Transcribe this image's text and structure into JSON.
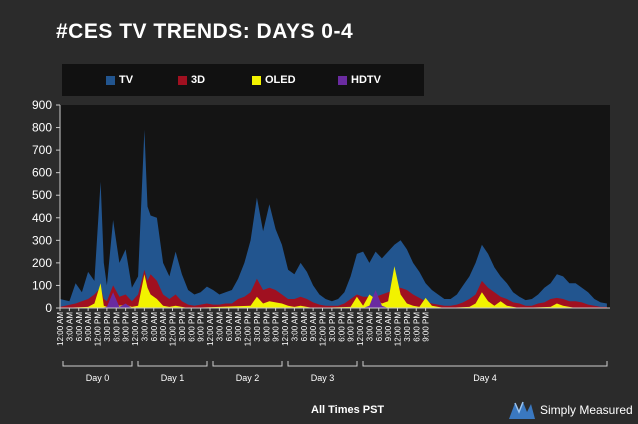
{
  "title": "#CES TV TRENDS: DAYS 0-4",
  "footer_note": "All Times PST",
  "brand": {
    "name": "Simply Measured",
    "icon": "simply-measured-logo"
  },
  "legend": [
    {
      "name": "TV",
      "color": "#22558f"
    },
    {
      "name": "3D",
      "color": "#a01020"
    },
    {
      "name": "OLED",
      "color": "#f2f200"
    },
    {
      "name": "HDTV",
      "color": "#6a2ba0"
    }
  ],
  "chart_data": {
    "type": "area",
    "title": "#CES TV TRENDS: DAYS 0-4",
    "ylim": [
      0,
      900
    ],
    "yticks": [
      0,
      100,
      200,
      300,
      400,
      500,
      600,
      700,
      800,
      900
    ],
    "grid": false,
    "legend_position": "top",
    "x_tick_labels": [
      "12:00 AM",
      "3:00 AM",
      "6:00 AM",
      "9:00 AM",
      "12:00 PM",
      "3:00 PM",
      "6:00 PM",
      "9:00 PM"
    ],
    "day_labels": [
      "Day 0",
      "Day 1",
      "Day 2",
      "Day 3",
      "Day 4"
    ],
    "x_unit": "hour (day 0, 12:00 AM = 0)",
    "series": [
      {
        "name": "TV",
        "color": "#22558f",
        "points": [
          [
            0,
            40
          ],
          [
            3,
            30
          ],
          [
            5,
            110
          ],
          [
            7,
            70
          ],
          [
            9,
            160
          ],
          [
            11,
            120
          ],
          [
            13,
            560
          ],
          [
            14,
            200
          ],
          [
            15,
            100
          ],
          [
            17,
            390
          ],
          [
            19,
            200
          ],
          [
            21,
            260
          ],
          [
            23,
            90
          ],
          [
            25,
            140
          ],
          [
            27,
            790
          ],
          [
            28,
            450
          ],
          [
            29,
            410
          ],
          [
            31,
            400
          ],
          [
            33,
            200
          ],
          [
            35,
            140
          ],
          [
            37,
            250
          ],
          [
            39,
            150
          ],
          [
            41,
            80
          ],
          [
            43,
            60
          ],
          [
            45,
            70
          ],
          [
            47,
            95
          ],
          [
            49,
            80
          ],
          [
            51,
            60
          ],
          [
            53,
            70
          ],
          [
            55,
            80
          ],
          [
            57,
            130
          ],
          [
            59,
            200
          ],
          [
            61,
            300
          ],
          [
            63,
            490
          ],
          [
            65,
            340
          ],
          [
            67,
            460
          ],
          [
            69,
            350
          ],
          [
            71,
            280
          ],
          [
            73,
            170
          ],
          [
            75,
            150
          ],
          [
            77,
            200
          ],
          [
            79,
            160
          ],
          [
            81,
            100
          ],
          [
            83,
            60
          ],
          [
            85,
            40
          ],
          [
            87,
            30
          ],
          [
            89,
            40
          ],
          [
            91,
            70
          ],
          [
            93,
            140
          ],
          [
            95,
            240
          ],
          [
            97,
            250
          ],
          [
            99,
            200
          ],
          [
            101,
            250
          ],
          [
            103,
            220
          ],
          [
            105,
            250
          ],
          [
            107,
            280
          ],
          [
            109,
            300
          ],
          [
            111,
            260
          ],
          [
            113,
            200
          ],
          [
            115,
            160
          ],
          [
            117,
            110
          ],
          [
            119,
            80
          ],
          [
            121,
            60
          ],
          [
            123,
            40
          ],
          [
            125,
            40
          ],
          [
            127,
            60
          ],
          [
            129,
            100
          ],
          [
            131,
            140
          ],
          [
            133,
            200
          ],
          [
            135,
            280
          ],
          [
            137,
            240
          ],
          [
            139,
            180
          ],
          [
            141,
            140
          ],
          [
            143,
            110
          ],
          [
            145,
            70
          ],
          [
            147,
            50
          ],
          [
            149,
            35
          ],
          [
            151,
            40
          ],
          [
            153,
            60
          ],
          [
            155,
            90
          ],
          [
            157,
            110
          ],
          [
            159,
            150
          ],
          [
            161,
            140
          ],
          [
            163,
            110
          ],
          [
            165,
            110
          ],
          [
            167,
            90
          ],
          [
            169,
            70
          ],
          [
            171,
            40
          ],
          [
            173,
            25
          ],
          [
            175,
            20
          ]
        ]
      },
      {
        "name": "3D",
        "color": "#a01020",
        "points": [
          [
            0,
            5
          ],
          [
            5,
            20
          ],
          [
            9,
            40
          ],
          [
            11,
            60
          ],
          [
            13,
            90
          ],
          [
            14,
            40
          ],
          [
            15,
            30
          ],
          [
            17,
            100
          ],
          [
            19,
            50
          ],
          [
            21,
            60
          ],
          [
            23,
            30
          ],
          [
            25,
            60
          ],
          [
            27,
            170
          ],
          [
            28,
            120
          ],
          [
            29,
            150
          ],
          [
            31,
            120
          ],
          [
            33,
            60
          ],
          [
            35,
            40
          ],
          [
            37,
            60
          ],
          [
            39,
            30
          ],
          [
            41,
            15
          ],
          [
            43,
            10
          ],
          [
            45,
            15
          ],
          [
            47,
            20
          ],
          [
            49,
            15
          ],
          [
            51,
            15
          ],
          [
            53,
            20
          ],
          [
            55,
            20
          ],
          [
            57,
            40
          ],
          [
            59,
            50
          ],
          [
            61,
            70
          ],
          [
            63,
            130
          ],
          [
            65,
            80
          ],
          [
            67,
            90
          ],
          [
            69,
            80
          ],
          [
            71,
            60
          ],
          [
            73,
            40
          ],
          [
            75,
            40
          ],
          [
            77,
            50
          ],
          [
            79,
            40
          ],
          [
            81,
            25
          ],
          [
            83,
            15
          ],
          [
            85,
            10
          ],
          [
            87,
            10
          ],
          [
            89,
            10
          ],
          [
            91,
            20
          ],
          [
            93,
            40
          ],
          [
            95,
            60
          ],
          [
            97,
            50
          ],
          [
            99,
            50
          ],
          [
            101,
            50
          ],
          [
            103,
            60
          ],
          [
            105,
            70
          ],
          [
            107,
            80
          ],
          [
            109,
            90
          ],
          [
            111,
            80
          ],
          [
            113,
            60
          ],
          [
            115,
            45
          ],
          [
            117,
            30
          ],
          [
            119,
            20
          ],
          [
            121,
            15
          ],
          [
            123,
            10
          ],
          [
            125,
            10
          ],
          [
            127,
            15
          ],
          [
            129,
            25
          ],
          [
            131,
            40
          ],
          [
            133,
            60
          ],
          [
            135,
            120
          ],
          [
            137,
            90
          ],
          [
            139,
            70
          ],
          [
            141,
            50
          ],
          [
            143,
            40
          ],
          [
            145,
            25
          ],
          [
            147,
            20
          ],
          [
            149,
            10
          ],
          [
            151,
            10
          ],
          [
            153,
            20
          ],
          [
            155,
            25
          ],
          [
            157,
            40
          ],
          [
            159,
            45
          ],
          [
            161,
            40
          ],
          [
            163,
            30
          ],
          [
            165,
            30
          ],
          [
            167,
            25
          ],
          [
            169,
            15
          ],
          [
            171,
            10
          ],
          [
            173,
            5
          ],
          [
            175,
            5
          ]
        ]
      },
      {
        "name": "OLED",
        "color": "#f2f200",
        "points": [
          [
            0,
            0
          ],
          [
            9,
            5
          ],
          [
            11,
            20
          ],
          [
            13,
            110
          ],
          [
            14,
            10
          ],
          [
            15,
            5
          ],
          [
            17,
            30
          ],
          [
            19,
            10
          ],
          [
            21,
            15
          ],
          [
            23,
            5
          ],
          [
            25,
            10
          ],
          [
            27,
            150
          ],
          [
            28,
            90
          ],
          [
            29,
            60
          ],
          [
            31,
            40
          ],
          [
            33,
            10
          ],
          [
            35,
            5
          ],
          [
            37,
            10
          ],
          [
            39,
            5
          ],
          [
            41,
            0
          ],
          [
            61,
            10
          ],
          [
            63,
            50
          ],
          [
            65,
            20
          ],
          [
            67,
            30
          ],
          [
            69,
            25
          ],
          [
            71,
            20
          ],
          [
            73,
            10
          ],
          [
            75,
            5
          ],
          [
            77,
            10
          ],
          [
            79,
            5
          ],
          [
            81,
            0
          ],
          [
            93,
            5
          ],
          [
            95,
            50
          ],
          [
            97,
            10
          ],
          [
            99,
            60
          ],
          [
            101,
            40
          ],
          [
            103,
            20
          ],
          [
            105,
            30
          ],
          [
            107,
            185
          ],
          [
            109,
            60
          ],
          [
            111,
            20
          ],
          [
            113,
            10
          ],
          [
            115,
            5
          ],
          [
            117,
            45
          ],
          [
            119,
            10
          ],
          [
            121,
            5
          ],
          [
            123,
            0
          ],
          [
            131,
            5
          ],
          [
            133,
            20
          ],
          [
            135,
            70
          ],
          [
            137,
            30
          ],
          [
            139,
            10
          ],
          [
            141,
            30
          ],
          [
            143,
            10
          ],
          [
            145,
            5
          ],
          [
            147,
            0
          ],
          [
            157,
            5
          ],
          [
            159,
            20
          ],
          [
            161,
            10
          ],
          [
            163,
            5
          ],
          [
            165,
            0
          ],
          [
            175,
            0
          ]
        ]
      },
      {
        "name": "HDTV",
        "color": "#6a2ba0",
        "points": [
          [
            0,
            0
          ],
          [
            13,
            0
          ],
          [
            15,
            5
          ],
          [
            17,
            70
          ],
          [
            19,
            5
          ],
          [
            21,
            20
          ],
          [
            23,
            0
          ],
          [
            97,
            0
          ],
          [
            99,
            10
          ],
          [
            101,
            80
          ],
          [
            103,
            10
          ],
          [
            105,
            0
          ],
          [
            175,
            0
          ]
        ]
      }
    ]
  }
}
